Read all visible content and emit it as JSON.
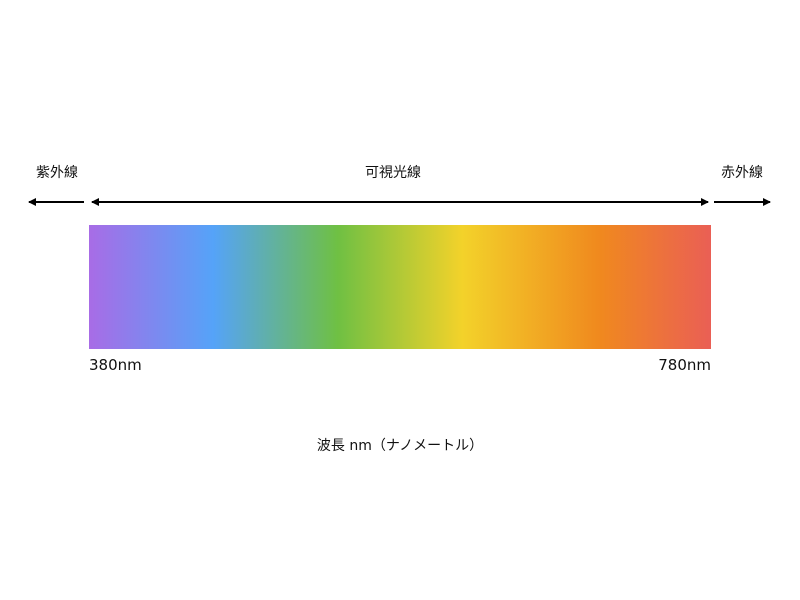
{
  "labels": {
    "ultraviolet": "紫外線",
    "visible": "可視光線",
    "infrared": "赤外線",
    "min_wavelength": "380nm",
    "max_wavelength": "780nm",
    "axis_caption": "波長 nm（ナノメートル）"
  },
  "spectrum_colors": [
    "#a86ce6",
    "#55a3f8",
    "#6fc043",
    "#f3d22a",
    "#f0891e",
    "#ea5f55"
  ]
}
